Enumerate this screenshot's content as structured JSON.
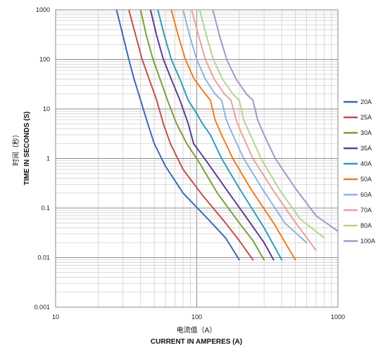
{
  "chart_data": {
    "type": "line",
    "title": "",
    "xscale": "log",
    "yscale": "log",
    "xlim": [
      10,
      1000
    ],
    "ylim": [
      0.001,
      1000
    ],
    "x_ticks": [
      "10",
      "100",
      "1000"
    ],
    "y_ticks": [
      "1000",
      "100",
      "10",
      "1",
      "0.1",
      "0.01",
      "0.001"
    ],
    "xlabel_cn": "电流值（A）",
    "xlabel": "CURRENT IN AMPERES (A)",
    "ylabel_cn": "时间（秒）",
    "ylabel": "TIME IN SECONDS (S)",
    "grid": true,
    "legend_position": "right",
    "series": [
      {
        "name": "20A",
        "color": "#3b6ab4",
        "points": [
          [
            27,
            1000
          ],
          [
            30,
            300
          ],
          [
            33,
            100
          ],
          [
            36,
            40
          ],
          [
            40,
            15
          ],
          [
            45,
            5
          ],
          [
            50,
            2
          ],
          [
            60,
            0.7
          ],
          [
            80,
            0.2
          ],
          [
            120,
            0.06
          ],
          [
            160,
            0.025
          ],
          [
            200,
            0.009
          ]
        ]
      },
      {
        "name": "25A",
        "color": "#c0504d",
        "points": [
          [
            33,
            1000
          ],
          [
            37,
            300
          ],
          [
            41,
            100
          ],
          [
            46,
            40
          ],
          [
            52,
            15
          ],
          [
            58,
            5
          ],
          [
            65,
            2
          ],
          [
            80,
            0.6
          ],
          [
            110,
            0.18
          ],
          [
            160,
            0.05
          ],
          [
            200,
            0.022
          ],
          [
            250,
            0.009
          ]
        ]
      },
      {
        "name": "30A",
        "color": "#77a13b",
        "points": [
          [
            40,
            1000
          ],
          [
            44,
            300
          ],
          [
            49,
            100
          ],
          [
            55,
            40
          ],
          [
            62,
            15
          ],
          [
            72,
            5
          ],
          [
            85,
            2
          ],
          [
            105,
            0.8
          ],
          [
            140,
            0.2
          ],
          [
            200,
            0.05
          ],
          [
            250,
            0.022
          ],
          [
            300,
            0.009
          ]
        ]
      },
      {
        "name": "35A",
        "color": "#5a3e8f",
        "points": [
          [
            47,
            1000
          ],
          [
            52,
            300
          ],
          [
            58,
            100
          ],
          [
            66,
            40
          ],
          [
            76,
            15
          ],
          [
            87,
            5
          ],
          [
            95,
            2
          ],
          [
            120,
            0.8
          ],
          [
            160,
            0.25
          ],
          [
            220,
            0.07
          ],
          [
            300,
            0.02
          ],
          [
            350,
            0.009
          ]
        ]
      },
      {
        "name": "40A",
        "color": "#2e9db7",
        "points": [
          [
            53,
            1000
          ],
          [
            59,
            300
          ],
          [
            66,
            100
          ],
          [
            76,
            40
          ],
          [
            87,
            15
          ],
          [
            100,
            8
          ],
          [
            110,
            5
          ],
          [
            125,
            3
          ],
          [
            150,
            1
          ],
          [
            200,
            0.25
          ],
          [
            300,
            0.04
          ],
          [
            400,
            0.009
          ]
        ]
      },
      {
        "name": "50A",
        "color": "#ee7d1d",
        "points": [
          [
            66,
            1000
          ],
          [
            74,
            300
          ],
          [
            83,
            100
          ],
          [
            96,
            40
          ],
          [
            115,
            20
          ],
          [
            125,
            15
          ],
          [
            135,
            6
          ],
          [
            150,
            3
          ],
          [
            180,
            1
          ],
          [
            240,
            0.25
          ],
          [
            350,
            0.05
          ],
          [
            500,
            0.009
          ]
        ]
      },
      {
        "name": "60A",
        "color": "#8eb3df",
        "points": [
          [
            80,
            1000
          ],
          [
            89,
            300
          ],
          [
            100,
            100
          ],
          [
            115,
            40
          ],
          [
            135,
            20
          ],
          [
            150,
            15
          ],
          [
            162,
            6
          ],
          [
            180,
            3
          ],
          [
            215,
            1
          ],
          [
            290,
            0.25
          ],
          [
            420,
            0.05
          ],
          [
            600,
            0.02
          ]
        ]
      },
      {
        "name": "70A",
        "color": "#e6a19f",
        "points": [
          [
            92,
            1000
          ],
          [
            103,
            300
          ],
          [
            115,
            100
          ],
          [
            133,
            40
          ],
          [
            157,
            20
          ],
          [
            175,
            15
          ],
          [
            190,
            6
          ],
          [
            210,
            3
          ],
          [
            250,
            1
          ],
          [
            340,
            0.25
          ],
          [
            480,
            0.06
          ],
          [
            700,
            0.014
          ]
        ]
      },
      {
        "name": "80A",
        "color": "#b9d28f",
        "points": [
          [
            105,
            1000
          ],
          [
            117,
            300
          ],
          [
            131,
            100
          ],
          [
            152,
            40
          ],
          [
            180,
            20
          ],
          [
            200,
            15
          ],
          [
            215,
            6
          ],
          [
            240,
            3
          ],
          [
            285,
            1
          ],
          [
            380,
            0.25
          ],
          [
            540,
            0.06
          ],
          [
            800,
            0.025
          ]
        ]
      },
      {
        "name": "100A",
        "color": "#a596c6",
        "points": [
          [
            130,
            1000
          ],
          [
            145,
            300
          ],
          [
            163,
            100
          ],
          [
            190,
            40
          ],
          [
            225,
            20
          ],
          [
            250,
            15
          ],
          [
            270,
            6
          ],
          [
            300,
            3
          ],
          [
            360,
            1
          ],
          [
            500,
            0.25
          ],
          [
            700,
            0.07
          ],
          [
            1000,
            0.034
          ]
        ]
      }
    ]
  }
}
